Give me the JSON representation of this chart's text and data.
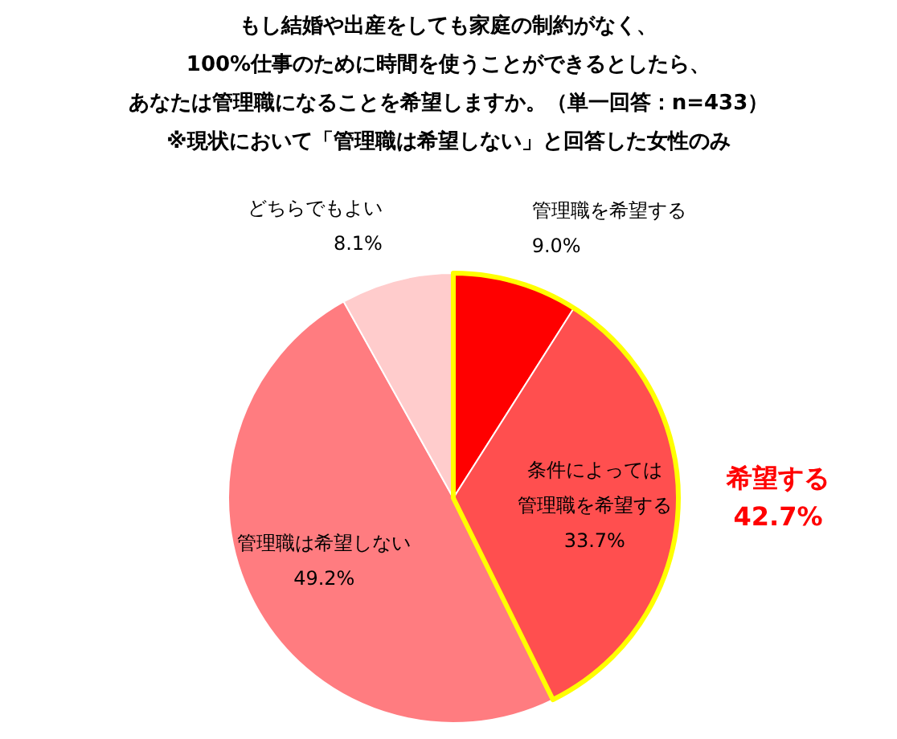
{
  "chart_data": {
    "type": "pie",
    "title": "もし結婚や出産をしても家庭の制約がなく、100%仕事のために時間を使うことができるとしたら、あなたは管理職になることを希望しますか。（単一回答：n=433）",
    "subtitle": "※現状において「管理職は希望しない」と回答した女性のみ",
    "categories": [
      "管理職を希望する",
      "条件によっては管理職を希望する",
      "管理職は希望しない",
      "どちらでもよい"
    ],
    "values": [
      9.0,
      33.7,
      49.2,
      8.1
    ],
    "colors": [
      "#ff0000",
      "#ff4f4f",
      "#ff7c80",
      "#ffcccc"
    ],
    "value_labels": [
      "9.0%",
      "33.7%",
      "49.2%",
      "8.1%"
    ],
    "annotations": [
      "希望する\n42.7%"
    ],
    "legend": false
  }
}
